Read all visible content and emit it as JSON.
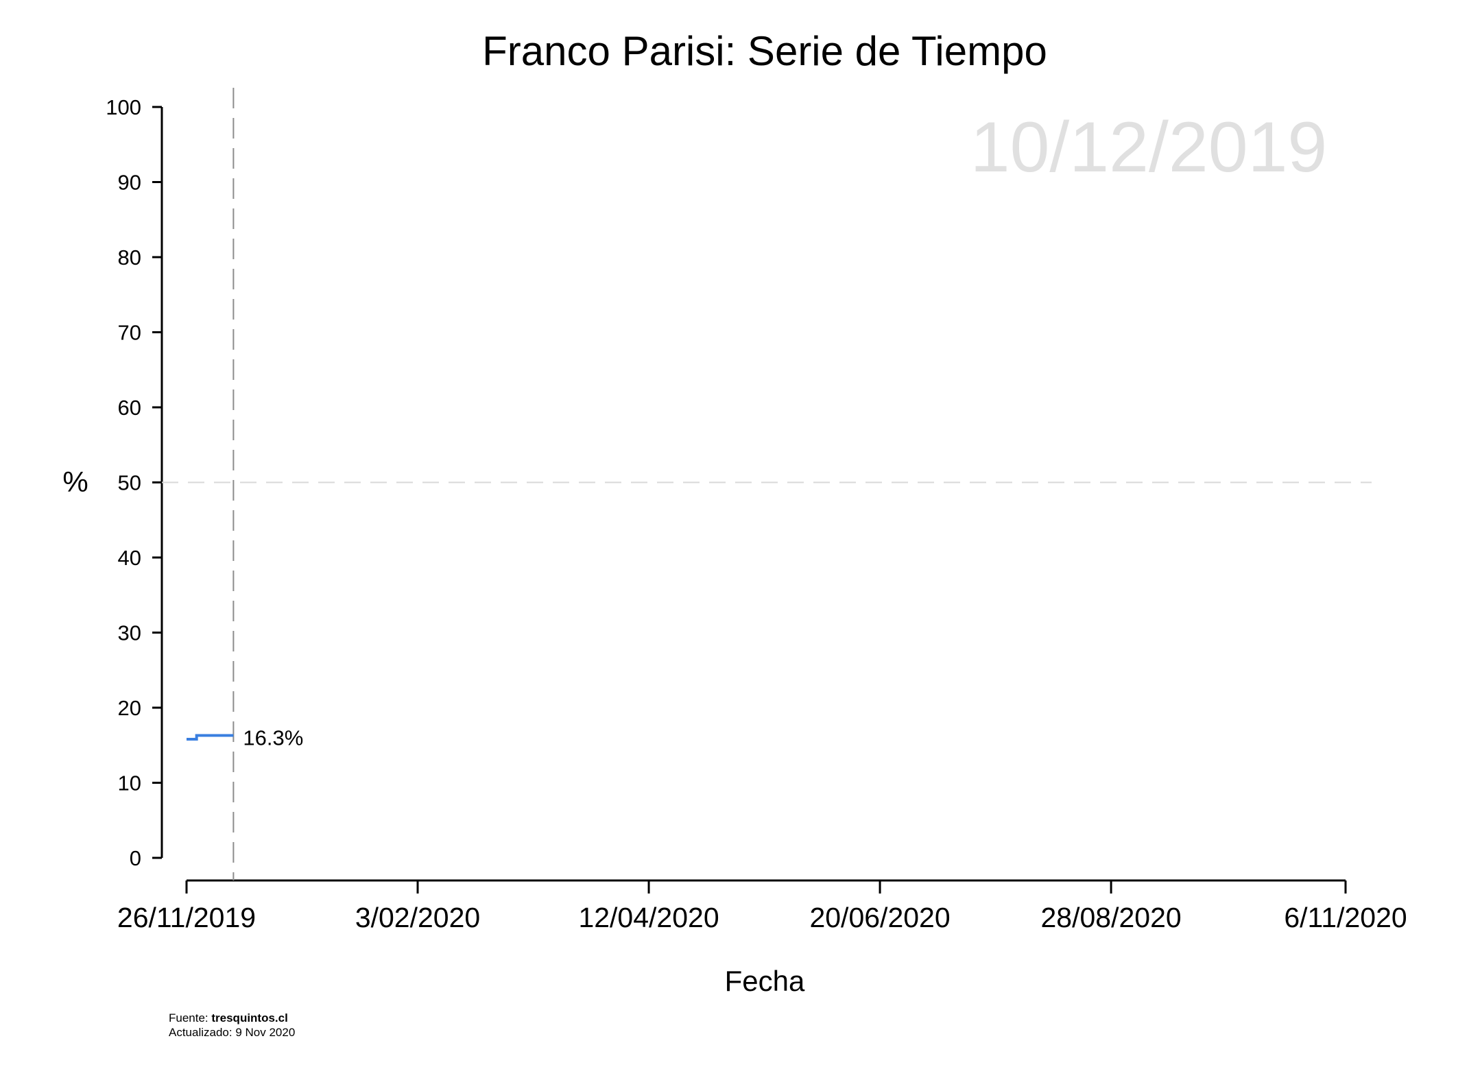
{
  "chart_data": {
    "type": "line",
    "title": "Franco Parisi: Serie de Tiempo",
    "xlabel": "Fecha",
    "ylabel": "%",
    "date_watermark": "10/12/2019",
    "xlim": [
      "2019-11-26",
      "2020-11-06"
    ],
    "ylim": [
      0,
      100
    ],
    "x_ticks": [
      {
        "date": "2019-11-26",
        "label": "26/11/2019"
      },
      {
        "date": "2020-02-03",
        "label": "3/02/2020"
      },
      {
        "date": "2020-04-12",
        "label": "12/04/2020"
      },
      {
        "date": "2020-06-20",
        "label": "20/06/2020"
      },
      {
        "date": "2020-08-28",
        "label": "28/08/2020"
      },
      {
        "date": "2020-11-06",
        "label": "6/11/2020"
      }
    ],
    "y_ticks": [
      0,
      10,
      20,
      30,
      40,
      50,
      60,
      70,
      80,
      90,
      100
    ],
    "reference_line_y": 50,
    "current_date_line": "2019-12-10",
    "series": [
      {
        "color": "#3a7fe0",
        "step": true,
        "points": [
          {
            "x": "2019-11-26",
            "y": 15.8
          },
          {
            "x": "2019-11-29",
            "y": 16.3
          },
          {
            "x": "2019-12-10",
            "y": 16.3
          }
        ],
        "end_label": "16.3%"
      }
    ],
    "colors": {
      "series": "#3a7fe0",
      "watermark": "#e0e0e0",
      "reference_line": "#d9d9d9",
      "current_line": "#8c8c8c"
    }
  },
  "footer": {
    "source_prefix": "Fuente: ",
    "source_name": "tresquintos.cl",
    "updated": "Actualizado: 9 Nov 2020"
  }
}
